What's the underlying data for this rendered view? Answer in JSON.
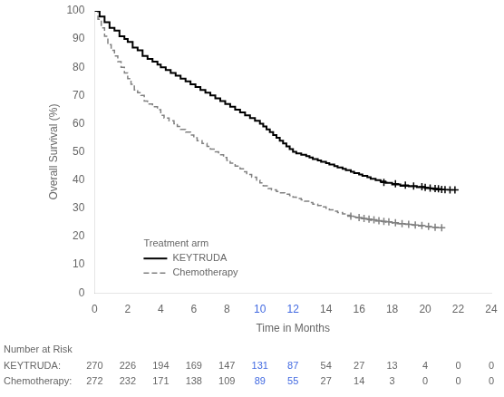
{
  "chart_data": {
    "type": "step",
    "xlabel": "Time in Months",
    "ylabel": "Overall Survival (%)",
    "xlim": [
      0,
      24
    ],
    "ylim": [
      0,
      100
    ],
    "xticks": [
      0,
      2,
      4,
      6,
      8,
      10,
      12,
      14,
      16,
      18,
      20,
      22,
      24
    ],
    "yticks": [
      0,
      10,
      20,
      30,
      40,
      50,
      60,
      70,
      80,
      90,
      100
    ],
    "grid": false,
    "legend": "lower left",
    "legend_title": "Treatment arm",
    "highlight_x": [
      10,
      12
    ],
    "highlight_color": "#4169E1",
    "series": [
      {
        "name": "KEYTRUDA",
        "color": "#000000",
        "line_style": "solid",
        "marker": "+",
        "x": [
          0,
          0.3,
          0.6,
          0.9,
          1.2,
          1.5,
          1.8,
          2.0,
          2.3,
          2.6,
          2.9,
          3.2,
          3.5,
          3.8,
          4.0,
          4.3,
          4.6,
          4.9,
          5.2,
          5.5,
          5.8,
          6.1,
          6.4,
          6.7,
          7.0,
          7.3,
          7.6,
          7.9,
          8.2,
          8.5,
          8.8,
          9.1,
          9.4,
          9.7,
          10.0,
          10.2,
          10.4,
          10.6,
          10.8,
          11.0,
          11.2,
          11.4,
          11.6,
          11.8,
          12.0,
          12.2,
          12.5,
          12.8,
          13.0,
          13.2,
          13.5,
          13.7,
          14.0,
          14.2,
          14.5,
          14.7,
          15.0,
          15.2,
          15.5,
          15.7,
          16.0,
          16.2,
          16.5,
          16.7,
          17.0,
          17.3,
          17.6,
          18.0,
          18.5,
          19.0,
          19.5,
          20.0,
          20.3,
          20.5,
          20.7,
          21.0
        ],
        "values": [
          100,
          98,
          96,
          94,
          93,
          91,
          90,
          89,
          87,
          86,
          84,
          83,
          82,
          81,
          80,
          79,
          78,
          77,
          76,
          75,
          74,
          73,
          72,
          71,
          70,
          69,
          68,
          67,
          66,
          65,
          64,
          63,
          62,
          61,
          60,
          59,
          58,
          57,
          56,
          55,
          54,
          53,
          52,
          51,
          50,
          49.5,
          49,
          48.5,
          48,
          47.5,
          47,
          46.5,
          46,
          45.5,
          45,
          44.5,
          44,
          43.5,
          43,
          42.5,
          42,
          41.5,
          41,
          40.5,
          40,
          39.5,
          39,
          38.5,
          38,
          37.8,
          37.5,
          37.2,
          37.0,
          36.8,
          36.7,
          36.5
        ],
        "censor_x": [
          17.5,
          18.2,
          18.8,
          19.3,
          19.8,
          20.0,
          20.3,
          20.6,
          20.8,
          21.0,
          21.2,
          21.5,
          21.8
        ],
        "censor_y": [
          39.2,
          38.7,
          38.2,
          37.9,
          37.7,
          37.4,
          37.2,
          37.0,
          36.9,
          36.7,
          36.6,
          36.5,
          36.5
        ]
      },
      {
        "name": "Chemotherapy",
        "color": "#808080",
        "line_style": "dashed",
        "marker": "+",
        "x": [
          0,
          0.2,
          0.4,
          0.6,
          0.8,
          1.0,
          1.2,
          1.4,
          1.6,
          1.8,
          2.0,
          2.2,
          2.4,
          2.6,
          2.8,
          3.0,
          3.2,
          3.5,
          3.8,
          4.0,
          4.2,
          4.5,
          4.8,
          5.0,
          5.2,
          5.5,
          5.8,
          6.0,
          6.2,
          6.5,
          6.8,
          7.0,
          7.3,
          7.5,
          7.8,
          8.0,
          8.2,
          8.5,
          8.8,
          9.0,
          9.2,
          9.5,
          9.8,
          10.0,
          10.2,
          10.5,
          10.7,
          11.0,
          11.2,
          11.5,
          11.8,
          12.0,
          12.2,
          12.5,
          12.7,
          13.0,
          13.2,
          13.5,
          13.7,
          14.0,
          14.2,
          14.5,
          14.7,
          15.0,
          15.2,
          15.5,
          15.8,
          16.0,
          16.2,
          16.5,
          16.7,
          17.0,
          17.3,
          17.6,
          18.0,
          18.3,
          18.6,
          19.0,
          19.3,
          19.6,
          20.0,
          20.3,
          20.6,
          21.0
        ],
        "values": [
          100,
          97,
          94,
          91,
          88,
          86,
          84,
          82,
          80,
          78,
          76,
          74,
          72,
          71,
          70,
          68,
          67,
          66,
          65,
          63,
          62,
          61,
          60,
          59,
          58,
          57,
          56,
          55,
          54,
          53,
          52,
          51,
          50,
          49,
          48,
          47,
          46,
          45,
          44,
          43,
          42,
          41,
          40,
          39,
          38,
          37,
          36.5,
          36,
          35.5,
          35,
          34.5,
          34,
          33.5,
          33,
          32.5,
          32,
          31.5,
          31,
          30.5,
          30,
          29.5,
          29,
          28.5,
          28,
          27.5,
          27,
          26.7,
          26.5,
          26.3,
          26.0,
          25.8,
          25.5,
          25.3,
          25.1,
          24.8,
          24.6,
          24.4,
          24.2,
          24.0,
          23.8,
          23.5,
          23.3,
          23.2,
          23.1
        ],
        "censor_x": [
          15.5,
          16.0,
          16.3,
          16.6,
          16.9,
          17.2,
          17.5,
          17.8,
          18.2,
          18.6,
          19.0,
          19.4,
          19.8,
          20.2,
          20.6,
          21.0
        ],
        "censor_y": [
          27.2,
          26.7,
          26.4,
          26.2,
          25.9,
          25.6,
          25.4,
          25.2,
          24.9,
          24.6,
          24.3,
          24.1,
          23.9,
          23.6,
          23.3,
          23.1
        ]
      }
    ],
    "risk_table": {
      "title": "Number at Risk",
      "x": [
        0,
        2,
        4,
        6,
        8,
        10,
        12,
        14,
        16,
        18,
        20,
        22,
        24
      ],
      "rows": [
        {
          "label": "KEYTRUDA:",
          "values": [
            270,
            226,
            194,
            169,
            147,
            131,
            87,
            54,
            27,
            13,
            4,
            0,
            0
          ]
        },
        {
          "label": "Chemotherapy:",
          "values": [
            272,
            232,
            171,
            138,
            109,
            89,
            55,
            27,
            14,
            3,
            0,
            0,
            0
          ]
        }
      ]
    }
  }
}
